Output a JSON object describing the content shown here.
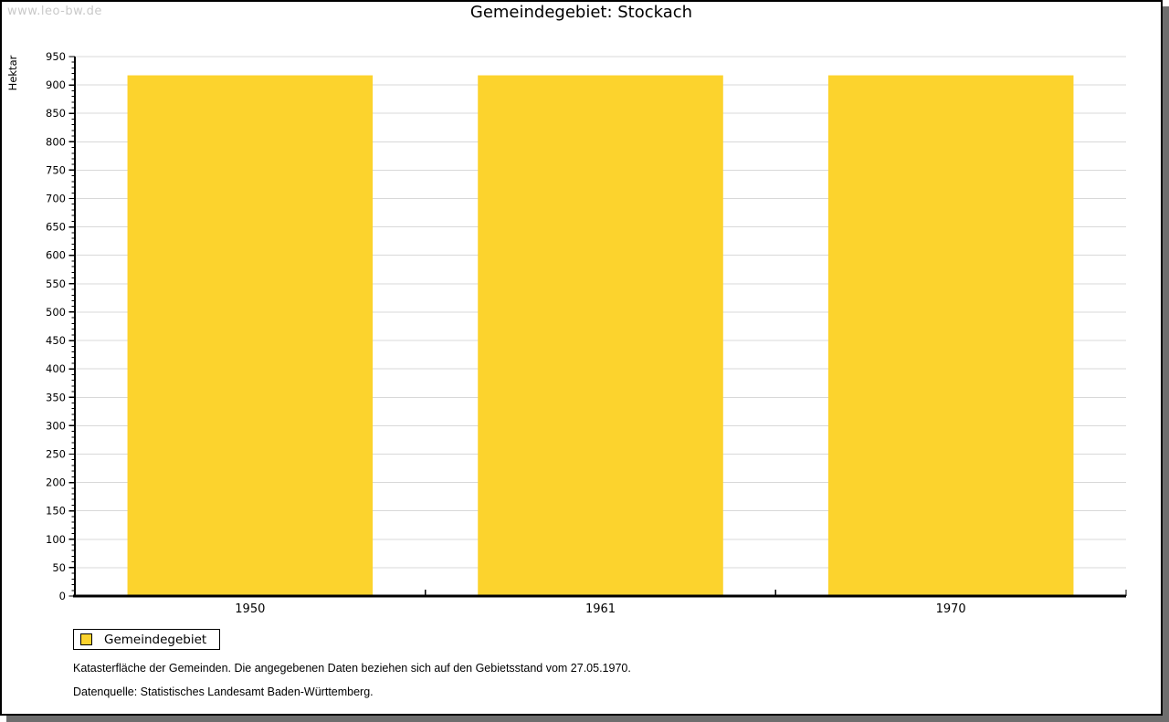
{
  "frame": {
    "watermark": "www.leo-bw.de"
  },
  "header": {
    "title": "Gemeindegebiet: Stockach"
  },
  "legend": {
    "position": "bottom-left",
    "items": [
      {
        "label": "Gemeindegebiet",
        "color": "#fcd32d"
      }
    ]
  },
  "footnotes": {
    "line1": "Katasterfläche der Gemeinden. Die angegebenen Daten beziehen sich auf den Gebietsstand vom 27.05.1970.",
    "line2": "Datenquelle: Statistisches Landesamt Baden-Württemberg."
  },
  "colors": {
    "bar": "#fcd32d",
    "grid": "#d8d8d8",
    "axis": "#000000",
    "watermark": "#c9c9c9",
    "frame_shadow": "#6e6e6e",
    "text": "#000000"
  },
  "chart_data": {
    "type": "bar",
    "title": "Gemeindegebiet: Stockach",
    "categories": [
      "1950",
      "1961",
      "1970"
    ],
    "series": [
      {
        "name": "Gemeindegebiet",
        "values": [
          917,
          917,
          917
        ],
        "color": "#fcd32d"
      }
    ],
    "xlabel": "",
    "ylabel": "Hektar",
    "ylim": [
      0,
      950
    ],
    "ytick_step": 50,
    "yminor_step": 10,
    "grid": true,
    "legend_position": "bottom-left",
    "bar_width_fraction": 0.7
  }
}
